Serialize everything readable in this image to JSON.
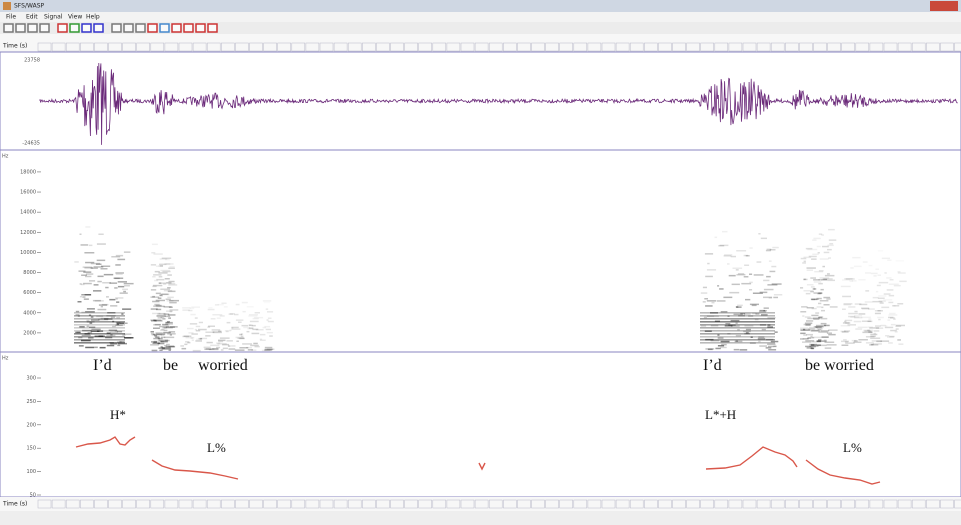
{
  "window": {
    "title": "SFS/WASP",
    "menu": [
      "File",
      "Edit",
      "Signal",
      "View",
      "Help"
    ]
  },
  "time_axis": {
    "label": "Time (s)"
  },
  "waveform": {
    "max_label": 23758,
    "min_label": -24635
  },
  "spectrogram": {
    "unit": "Hz",
    "ticks": [
      2000,
      4000,
      6000,
      8000,
      10000,
      12000,
      14000,
      16000,
      18000
    ]
  },
  "pitch": {
    "unit": "Hz",
    "ticks": [
      50,
      100,
      150,
      200,
      250,
      300
    ]
  },
  "annotations": {
    "words": [
      "I’d",
      "be",
      "worried",
      "I’d",
      "be worried"
    ],
    "tones": [
      "H*",
      "L%",
      "L*+H",
      "L%"
    ]
  }
}
